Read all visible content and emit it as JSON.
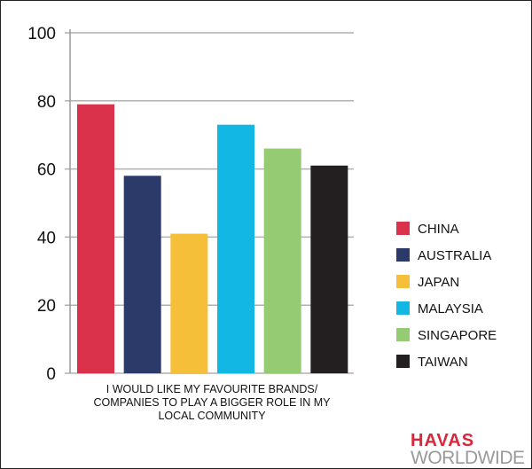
{
  "chart_data": {
    "type": "bar",
    "title": "",
    "xlabel": "",
    "ylabel": "",
    "ylim": [
      0,
      100
    ],
    "yticks": [
      0,
      20,
      40,
      60,
      80,
      100
    ],
    "grid": true,
    "legend_position": "right",
    "category_label": "I WOULD LIKE MY FAVOURITE BRANDS/ COMPANIES TO PLAY A BIGGER ROLE IN MY LOCAL COMMUNITY",
    "category_label_lines": [
      "I WOULD LIKE MY FAVOURITE BRANDS/",
      "COMPANIES TO PLAY A BIGGER ROLE IN MY",
      "LOCAL COMMUNITY"
    ],
    "series": [
      {
        "name": "CHINA",
        "value": 79,
        "color": "#d9324a"
      },
      {
        "name": "AUSTRALIA",
        "value": 58,
        "color": "#2b3a69"
      },
      {
        "name": "JAPAN",
        "value": 41,
        "color": "#f6bf3a"
      },
      {
        "name": "MALAYSIA",
        "value": 73,
        "color": "#12b8e3"
      },
      {
        "name": "SINGAPORE",
        "value": 66,
        "color": "#95cb72"
      },
      {
        "name": "TAIWAN",
        "value": 61,
        "color": "#231f20"
      }
    ]
  },
  "logo": {
    "brand": "HAVAS",
    "sub": "WORLDWIDE"
  }
}
